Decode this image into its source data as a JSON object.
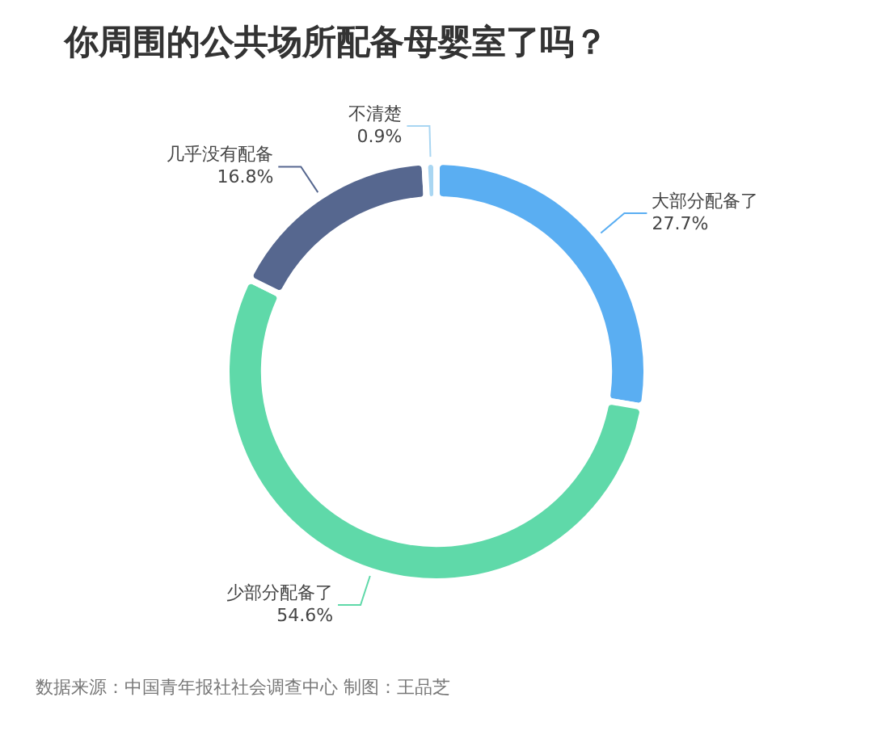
{
  "chart_data": {
    "type": "donut",
    "title": "你周围的公共场所配备母婴室了吗？",
    "categories": [
      "大部分配备了",
      "少部分配备了",
      "几乎没有配备",
      "不清楚"
    ],
    "values": [
      27.7,
      54.6,
      16.8,
      0.9
    ],
    "value_labels": [
      "27.7%",
      "54.6%",
      "16.8%",
      "0.9%"
    ],
    "colors": [
      "#5aaef2",
      "#5fd9a9",
      "#56678f",
      "#a9d6f2"
    ],
    "legend": false,
    "annotations": [
      "数据来源：中国青年报社社会调查中心 制图：王品芝"
    ]
  }
}
